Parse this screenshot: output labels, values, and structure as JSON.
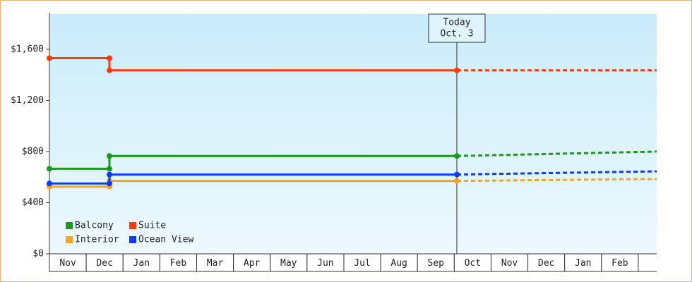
{
  "chart_data": {
    "type": "line",
    "categories": [
      "Nov",
      "Dec",
      "Jan",
      "Feb",
      "Mar",
      "Apr",
      "May",
      "Jun",
      "Jul",
      "Aug",
      "Sep",
      "Oct",
      "Nov",
      "Dec",
      "Jan",
      "Feb"
    ],
    "x": [
      0,
      1.63,
      1.63,
      11.07
    ],
    "xlim": [
      0,
      16.5
    ],
    "ylim": [
      0,
      1875
    ],
    "yticks": [
      {
        "value": 0,
        "label": "$0"
      },
      {
        "value": 400,
        "label": "$400"
      },
      {
        "value": 800,
        "label": "$800"
      },
      {
        "value": 1200,
        "label": "$1,200"
      },
      {
        "value": 1600,
        "label": "$1,600"
      }
    ],
    "legend": "lower left",
    "annotation": {
      "x": 11.07,
      "lines": [
        "Today",
        "Oct. 3"
      ]
    },
    "series": [
      {
        "name": "Balcony",
        "color": "#1a9a1a",
        "values": [
          665,
          665,
          765,
          765
        ],
        "forecast": {
          "x": [
            11.07,
            16.5
          ],
          "values": [
            765,
            800
          ]
        }
      },
      {
        "name": "Suite",
        "color": "#ff3a0a",
        "values": [
          1530,
          1530,
          1435,
          1435
        ],
        "forecast": {
          "x": [
            11.07,
            16.5
          ],
          "values": [
            1435,
            1435
          ]
        }
      },
      {
        "name": "Interior",
        "color": "#f5a51e",
        "values": [
          525,
          525,
          570,
          570
        ],
        "forecast": {
          "x": [
            11.07,
            16.5
          ],
          "values": [
            570,
            585
          ]
        }
      },
      {
        "name": "Ocean View",
        "color": "#0a3cff",
        "values": [
          550,
          550,
          620,
          620
        ],
        "forecast": {
          "x": [
            11.07,
            16.5
          ],
          "values": [
            620,
            645
          ]
        }
      }
    ]
  }
}
